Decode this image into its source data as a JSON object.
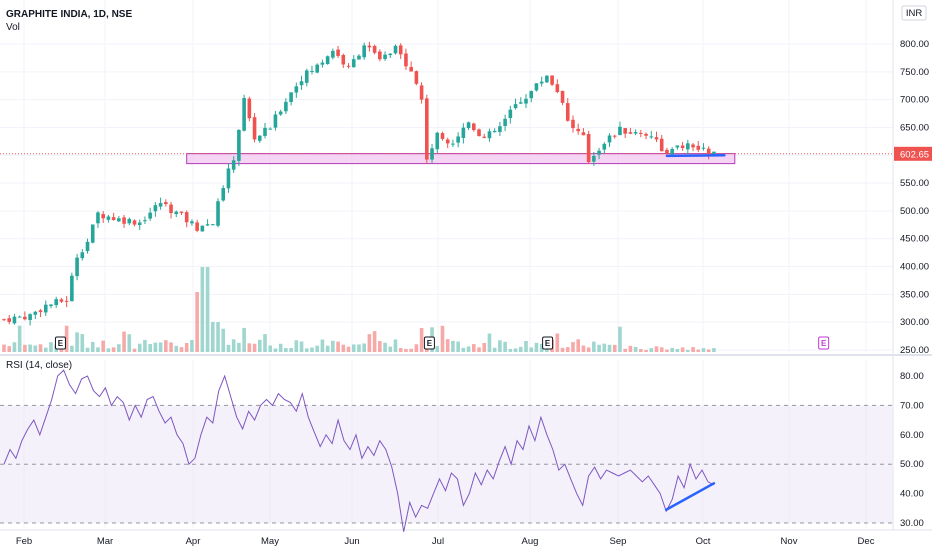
{
  "header": {
    "title": "GRAPHITE INDIA, 1D, NSE",
    "volume_label": "Vol",
    "currency": "INR"
  },
  "rsi_panel": {
    "label": "RSI (14, close)"
  },
  "colors": {
    "up": "#26a69a",
    "down": "#ef5350",
    "vol_up": "#9fd6cf",
    "vol_down": "#f7a9a7",
    "rsi_line": "#7e57c2",
    "rsi_band": "#ede7f6",
    "zone_fill": "#f3c6f0",
    "zone_stroke": "#b13bb7",
    "trendline": "#2962ff",
    "price_line": "#ef5350",
    "earnings": "#131722",
    "earnings_upcoming": "#c23bd4"
  },
  "chart_data": [
    {
      "type": "candlestick",
      "series_note": "Daily OHLC",
      "price_axis": {
        "ticks": [
          "250.00",
          "300.00",
          "350.00",
          "400.00",
          "450.00",
          "500.00",
          "550.00",
          "600.00",
          "650.00",
          "700.00",
          "750.00",
          "800.00"
        ],
        "ylim": [
          250,
          850
        ]
      },
      "last_price": "602.65",
      "x_axis": {
        "ticks": [
          "Feb",
          "Mar",
          "Apr",
          "May",
          "Jun",
          "Jul",
          "Aug",
          "Sep",
          "Oct",
          "Nov",
          "Dec"
        ]
      },
      "price_path": [
        [
          0,
          305
        ],
        [
          5,
          312
        ],
        [
          8,
          330
        ],
        [
          12,
          340
        ],
        [
          14,
          420
        ],
        [
          16,
          445
        ],
        [
          18,
          495
        ],
        [
          22,
          485
        ],
        [
          26,
          480
        ],
        [
          30,
          515
        ],
        [
          34,
          490
        ],
        [
          37,
          470
        ],
        [
          40,
          480
        ],
        [
          42,
          545
        ],
        [
          44,
          595
        ],
        [
          46,
          700
        ],
        [
          48,
          630
        ],
        [
          51,
          650
        ],
        [
          54,
          700
        ],
        [
          57,
          740
        ],
        [
          60,
          760
        ],
        [
          63,
          790
        ],
        [
          66,
          755
        ],
        [
          69,
          800
        ],
        [
          72,
          770
        ],
        [
          75,
          790
        ],
        [
          78,
          755
        ],
        [
          80,
          700
        ],
        [
          81,
          595
        ],
        [
          83,
          635
        ],
        [
          86,
          625
        ],
        [
          89,
          660
        ],
        [
          92,
          630
        ],
        [
          95,
          650
        ],
        [
          98,
          690
        ],
        [
          101,
          715
        ],
        [
          104,
          745
        ],
        [
          107,
          700
        ],
        [
          108,
          660
        ],
        [
          111,
          630
        ],
        [
          112,
          590
        ],
        [
          115,
          625
        ],
        [
          118,
          645
        ],
        [
          121,
          640
        ],
        [
          124,
          638
        ],
        [
          127,
          600
        ],
        [
          130,
          618
        ],
        [
          133,
          610
        ],
        [
          136,
          603
        ]
      ],
      "support_zone": {
        "low": 585,
        "high": 603
      },
      "earnings_markers": [
        {
          "label": "E",
          "month_pos": 0.45
        },
        {
          "label": "E",
          "month_pos": 4.9
        },
        {
          "label": "E",
          "month_pos": 6.2
        },
        {
          "label": "E",
          "month_pos": 9.45
        }
      ]
    },
    {
      "type": "line",
      "name": "RSI (14, close)",
      "y_axis": {
        "ticks": [
          "30.00",
          "40.00",
          "50.00",
          "60.00",
          "70.00",
          "80.00"
        ],
        "ylim": [
          25,
          83
        ]
      },
      "bands": [
        30,
        50,
        70
      ],
      "values": [
        50,
        55,
        52,
        58,
        62,
        65,
        60,
        66,
        72,
        80,
        82,
        77,
        74,
        79,
        80,
        75,
        73,
        76,
        70,
        73,
        71,
        65,
        70,
        66,
        72,
        73,
        68,
        64,
        66,
        60,
        57,
        50,
        52,
        60,
        66,
        64,
        75,
        80,
        73,
        66,
        62,
        68,
        65,
        70,
        72,
        70,
        74,
        72,
        71,
        68,
        74,
        66,
        61,
        56,
        60,
        57,
        65,
        58,
        55,
        60,
        52,
        56,
        53,
        58,
        55,
        49,
        40,
        27,
        37,
        32,
        36,
        35,
        40,
        45,
        41,
        47,
        45,
        36,
        40,
        47,
        43,
        48,
        45,
        51,
        56,
        50,
        58,
        55,
        63,
        58,
        66,
        60,
        55,
        48,
        50,
        45,
        40,
        36,
        46,
        49,
        45,
        48,
        47,
        46,
        47,
        48,
        46,
        44,
        46,
        43,
        40,
        34,
        38,
        46,
        42,
        50,
        45,
        48,
        44,
        43
      ],
      "trendline": [
        [
          111,
          34.5
        ],
        [
          119,
          43.5
        ]
      ]
    }
  ]
}
